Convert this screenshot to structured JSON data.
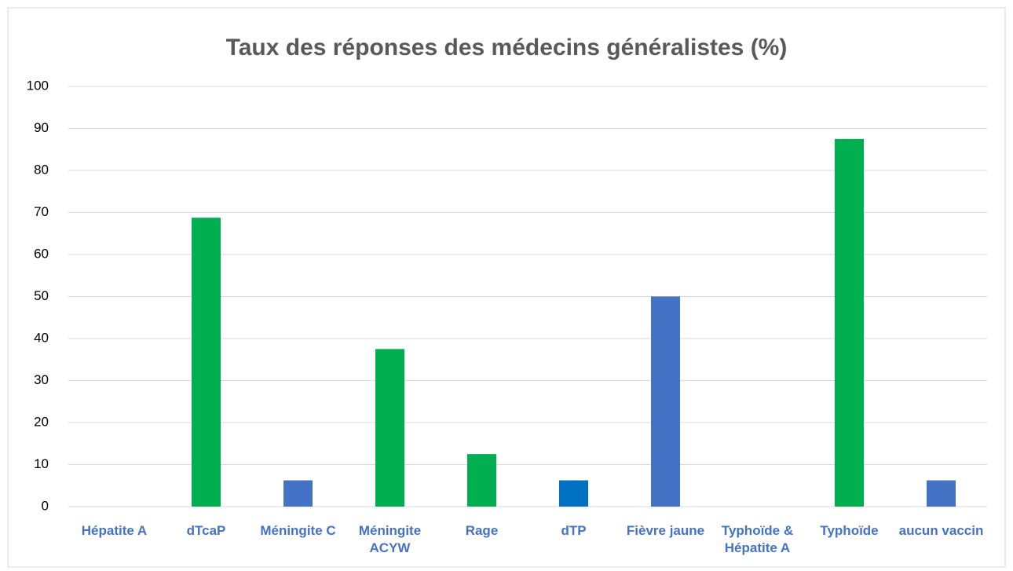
{
  "chart_data": {
    "type": "bar",
    "title": "Taux des réponses des médecins généralistes (%)",
    "categories": [
      "Hépatite A",
      "dTcaP",
      "Méningite C",
      "Méningite ACYW",
      "Rage",
      "dTP",
      "Fièvre jaune",
      "Typhoïde & Hépatite A",
      "Typhoïde",
      "aucun vaccin"
    ],
    "values": [
      0,
      68.75,
      6.25,
      37.5,
      12.5,
      6.25,
      50,
      0,
      87.5,
      6.25
    ],
    "colors": [
      "#4472c4",
      "#00b050",
      "#4472c4",
      "#00b050",
      "#00b050",
      "#0070c0",
      "#4472c4",
      "#4472c4",
      "#00b050",
      "#4472c4"
    ],
    "ylim": [
      0,
      100
    ],
    "yticks": [
      0,
      10,
      20,
      30,
      40,
      50,
      60,
      70,
      80,
      90,
      100
    ],
    "grid": true
  }
}
